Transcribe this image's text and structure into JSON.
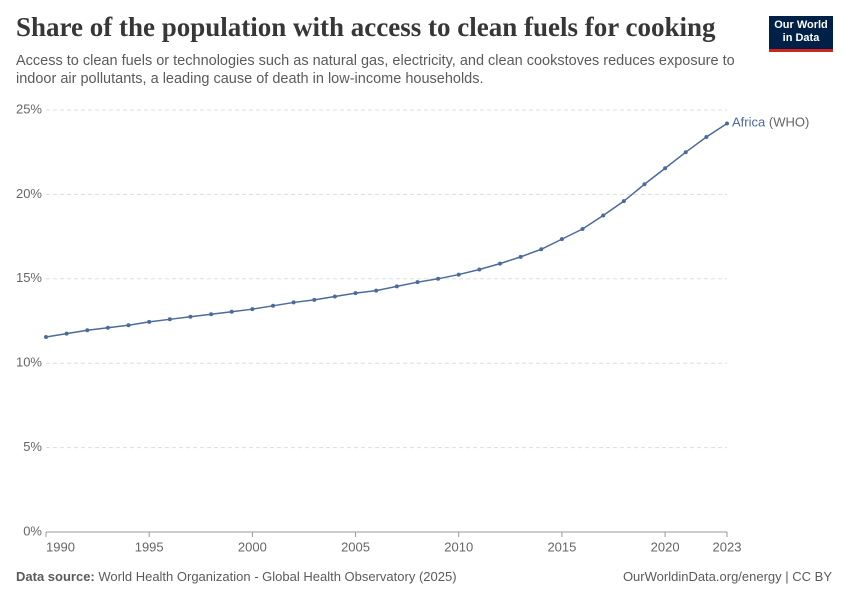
{
  "logo": {
    "line1": "Our World",
    "line2": "in Data"
  },
  "footer": {
    "source_label": "Data source:",
    "source": "World Health Organization - Global Health Observatory (2025)",
    "url": "OurWorldinData.org/energy | CC BY"
  },
  "chart_data": {
    "type": "line",
    "title": "Share of the population with access to clean fuels for cooking",
    "subtitle": "Access to clean fuels or technologies such as natural gas, electricity, and clean cookstoves reduces exposure to indoor air pollutants, a leading cause of death in low-income households.",
    "x": [
      1990,
      1991,
      1992,
      1993,
      1994,
      1995,
      1996,
      1997,
      1998,
      1999,
      2000,
      2001,
      2002,
      2003,
      2004,
      2005,
      2006,
      2007,
      2008,
      2009,
      2010,
      2011,
      2012,
      2013,
      2014,
      2015,
      2016,
      2017,
      2018,
      2019,
      2020,
      2021,
      2022,
      2023
    ],
    "series": [
      {
        "name": "Africa",
        "note": "(WHO)",
        "color": "#4c6a9c",
        "values": [
          11.55,
          11.75,
          11.95,
          12.1,
          12.25,
          12.45,
          12.6,
          12.75,
          12.9,
          13.05,
          13.2,
          13.4,
          13.6,
          13.75,
          13.95,
          14.15,
          14.3,
          14.55,
          14.8,
          15.0,
          15.25,
          15.55,
          15.9,
          16.3,
          16.75,
          17.35,
          17.95,
          18.75,
          19.6,
          20.6,
          21.55,
          22.5,
          23.4,
          24.2
        ]
      }
    ],
    "xlim": [
      1990,
      2023
    ],
    "xticks": [
      1990,
      1995,
      2000,
      2005,
      2010,
      2015,
      2020,
      2023
    ],
    "ylim": [
      0,
      25
    ],
    "yticks": [
      {
        "value": 0,
        "label": "0%"
      },
      {
        "value": 5,
        "label": "5%"
      },
      {
        "value": 10,
        "label": "10%"
      },
      {
        "value": 15,
        "label": "15%"
      },
      {
        "value": 20,
        "label": "20%"
      },
      {
        "value": 25,
        "label": "25%"
      }
    ],
    "grid": true
  }
}
